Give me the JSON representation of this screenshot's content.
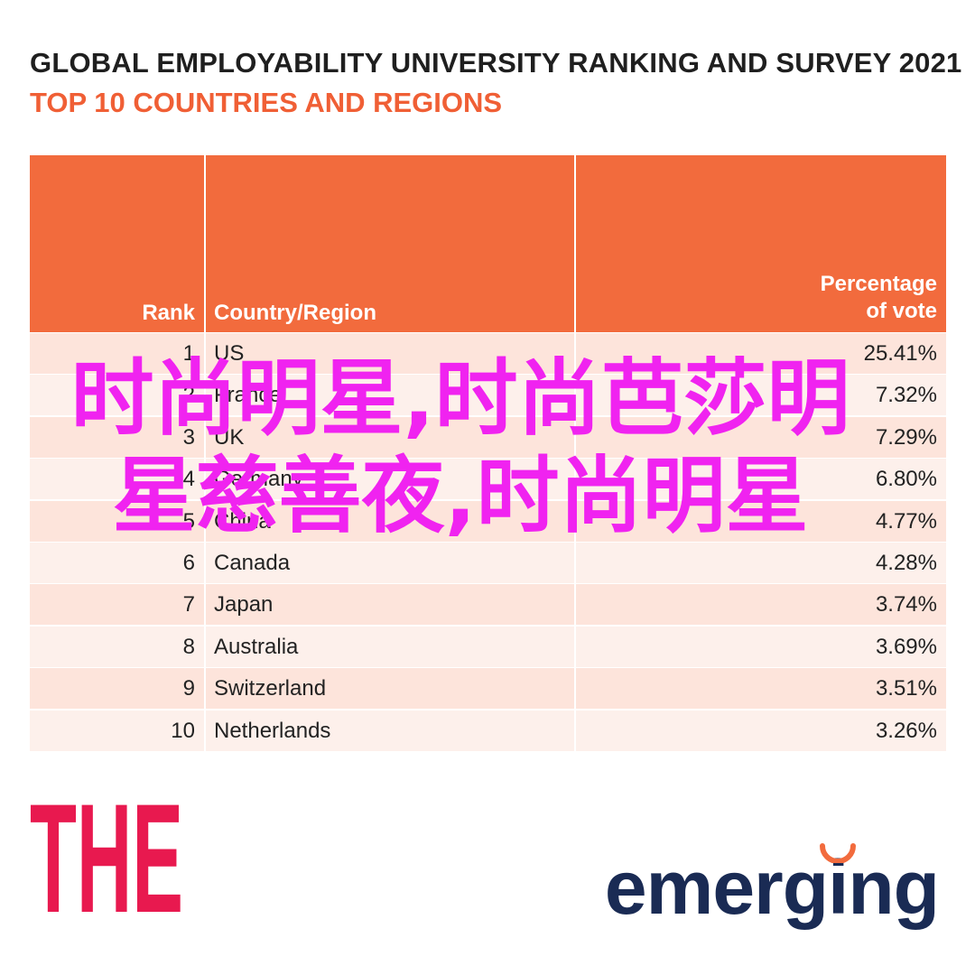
{
  "chart_data": {
    "type": "table",
    "title": "GLOBAL EMPLOYABILITY UNIVERSITY RANKING AND SURVEY 2021",
    "subtitle": "TOP 10 COUNTRIES AND REGIONS",
    "columns": [
      "Rank",
      "Country/Region",
      "Percentage of vote"
    ],
    "header_lines": {
      "pct_line1": "Percentage",
      "pct_line2": "of vote"
    },
    "rows": [
      {
        "rank": "1",
        "country": "US",
        "pct": "25.41%"
      },
      {
        "rank": "2",
        "country": "France",
        "pct": "7.32%"
      },
      {
        "rank": "3",
        "country": "UK",
        "pct": "7.29%"
      },
      {
        "rank": "4",
        "country": "Germany",
        "pct": "6.80%"
      },
      {
        "rank": "5",
        "country": "China",
        "pct": "4.77%"
      },
      {
        "rank": "6",
        "country": "Canada",
        "pct": "4.28%"
      },
      {
        "rank": "7",
        "country": "Japan",
        "pct": "3.74%"
      },
      {
        "rank": "8",
        "country": "Australia",
        "pct": "3.69%"
      },
      {
        "rank": "9",
        "country": "Switzerland",
        "pct": "3.51%"
      },
      {
        "rank": "10",
        "country": "Netherlands",
        "pct": "3.26%"
      }
    ]
  },
  "overlay_text": "时尚明星,时尚芭莎明星慈善夜,时尚明星",
  "logos": {
    "left": "THE",
    "right": "emerging"
  },
  "colors": {
    "header": "#f26b3d",
    "subtitle": "#f05f35",
    "row_dark": "#fde4db",
    "row_light": "#fdf0eb",
    "overlay": "#f023f0",
    "logo_the": "#e8194f",
    "logo_emerging": "#1a2b54",
    "logo_accent": "#f26b3d"
  }
}
